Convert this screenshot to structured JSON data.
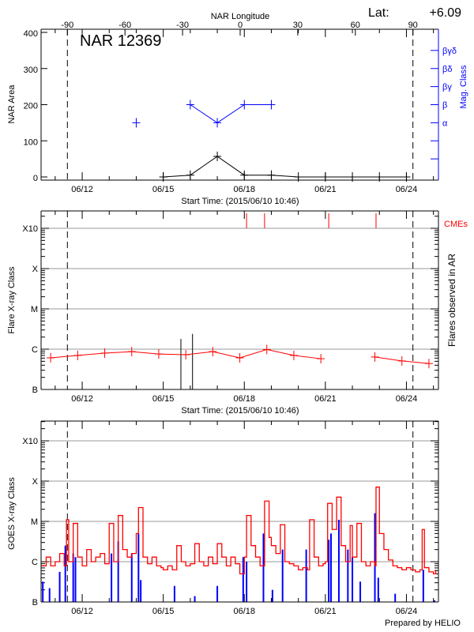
{
  "chart_data": [
    {
      "type": "line",
      "title": "NAR 12369",
      "lat_label": "Lat:",
      "lat_value": "+6.09",
      "ylabel": "NAR Area",
      "y2label": "Mag. Class",
      "x2label": "NAR Longitude",
      "xlabel": "Start Time: (2015/06/10 10:46)",
      "ylim": [
        0,
        400
      ],
      "yticks": [
        "0",
        "100",
        "200",
        "300",
        "400"
      ],
      "xticks": [
        "06/12",
        "06/15",
        "06/18",
        "06/21",
        "06/24"
      ],
      "x2ticks": [
        "-90",
        "-60",
        "-30",
        "0",
        "30",
        "60",
        "90"
      ],
      "limb_longitudes": [
        -90,
        90
      ],
      "mag_class_ticks": [
        "α",
        "β",
        "βγ",
        "βδ",
        "βγδ"
      ],
      "colors": {
        "area": "#000000",
        "mag_class": "#0000ff"
      },
      "series": [
        {
          "name": "NAR Area",
          "points": [
            [
              "06/15 00:00",
              0
            ],
            [
              "06/16 00:00",
              5
            ],
            [
              "06/17 00:00",
              57
            ],
            [
              "06/18 00:00",
              5
            ],
            [
              "06/19 00:00",
              5
            ],
            [
              "06/20 00:00",
              0
            ],
            [
              "06/21 00:00",
              0
            ],
            [
              "06/22 00:00",
              0
            ],
            [
              "06/23 00:00",
              0
            ],
            [
              "06/24 00:00",
              0
            ]
          ]
        },
        {
          "name": "Mag. Class",
          "points": [
            [
              "06/14 00:00",
              "α"
            ],
            [
              "06/16 00:00",
              "β"
            ],
            [
              "06/17 00:00",
              "α"
            ],
            [
              "06/18 00:00",
              "β"
            ],
            [
              "06/19 00:00",
              "β"
            ]
          ]
        }
      ]
    },
    {
      "type": "line",
      "ylabel": "Flare X-ray Class",
      "y2label": "Flares observed in AR",
      "cme_label": "CMEs",
      "xlabel": "Start Time: (2015/06/10 10:46)",
      "yticks": [
        "B",
        "C",
        "M",
        "X",
        "X10"
      ],
      "xticks": [
        "06/12",
        "06/15",
        "06/18",
        "06/21",
        "06/24"
      ],
      "colors": {
        "background": "#ff0000",
        "flares": "#000000",
        "cmes": "#ff0000"
      },
      "background_flux": [
        [
          "06/10 20:00",
          "B6.1"
        ],
        [
          "06/11 20:00",
          "B7.0"
        ],
        [
          "06/12 20:00",
          "B8.0"
        ],
        [
          "06/13 20:00",
          "B8.7"
        ],
        [
          "06/14 20:00",
          "B7.6"
        ],
        [
          "06/15 20:00",
          "B7.3"
        ],
        [
          "06/16 20:00",
          "B8.7"
        ],
        [
          "06/17 20:00",
          "B6.1"
        ],
        [
          "06/18 20:00",
          "B9.8"
        ],
        [
          "06/19 20:00",
          "B7.0"
        ],
        [
          "06/20 20:00",
          "B5.8"
        ],
        null,
        [
          "06/22 20:00",
          "B6.4"
        ],
        [
          "06/23 20:00",
          "B5.1"
        ],
        [
          "06/24 20:00",
          "B4.4"
        ]
      ],
      "flares": [
        [
          "06/15 15:40",
          "C1.8"
        ],
        [
          "06/16 02:00",
          "C2.4"
        ]
      ],
      "cmes": [
        "06/18 02:00",
        "06/18 18:00",
        "06/21 03:00",
        "06/22 21:00"
      ]
    },
    {
      "type": "line",
      "ylabel": "GOES X-ray Class",
      "yticks": [
        "B",
        "C",
        "M",
        "X",
        "X10"
      ],
      "xticks": [
        "06/12",
        "06/15",
        "06/18",
        "06/21",
        "06/24"
      ],
      "colors": {
        "long": "#ff0000",
        "short": "#0000ff"
      },
      "series": [
        {
          "points": [
            [
              "06/10 12:00",
              "B7.9"
            ],
            [
              "06/10 16:00",
              "C1.3"
            ],
            [
              "06/10 20:00",
              "B7.9"
            ],
            [
              "06/11 00:00",
              "C1.0"
            ],
            [
              "06/11 04:00",
              "C1.6"
            ],
            [
              "06/11 08:00",
              "B7.9"
            ],
            [
              "06/11 10:00",
              "M1.1"
            ],
            [
              "06/11 12:00",
              "C1.0"
            ],
            [
              "06/11 16:00",
              "C8.9"
            ],
            [
              "06/11 20:00",
              "C1.3"
            ],
            [
              "06/12 00:00",
              "B7.9"
            ],
            [
              "06/12 04:00",
              "C2.0"
            ],
            [
              "06/12 08:00",
              "C1.0"
            ],
            [
              "06/12 12:00",
              "C1.3"
            ],
            [
              "06/12 16:00",
              "C1.6"
            ],
            [
              "06/12 20:00",
              "B8.9"
            ],
            [
              "06/13 00:00",
              "C8.9"
            ],
            [
              "06/13 04:00",
              "C1.0"
            ],
            [
              "06/13 08:00",
              "M1.4"
            ],
            [
              "06/13 12:00",
              "C2.0"
            ],
            [
              "06/13 16:00",
              "C1.3"
            ],
            [
              "06/13 20:00",
              "C1.6"
            ],
            [
              "06/14 00:00",
              "C5.0"
            ],
            [
              "06/14 02:00",
              "M2.2"
            ],
            [
              "06/14 06:00",
              "C1.3"
            ],
            [
              "06/14 10:00",
              "B8.9"
            ],
            [
              "06/14 14:00",
              "C1.3"
            ],
            [
              "06/14 18:00",
              "B7.9"
            ],
            [
              "06/14 22:00",
              "B7.1"
            ],
            [
              "06/15 00:00",
              "B6.3"
            ],
            [
              "06/15 04:00",
              "B7.9"
            ],
            [
              "06/15 08:00",
              "B6.3"
            ],
            [
              "06/15 12:00",
              "C2.5"
            ],
            [
              "06/15 16:00",
              "C1.0"
            ],
            [
              "06/15 20:00",
              "B7.9"
            ],
            [
              "06/16 00:00",
              "B8.9"
            ],
            [
              "06/16 04:00",
              "C2.8"
            ],
            [
              "06/16 08:00",
              "C1.0"
            ],
            [
              "06/16 12:00",
              "B7.9"
            ],
            [
              "06/16 16:00",
              "C1.3"
            ],
            [
              "06/16 20:00",
              "B8.9"
            ],
            [
              "06/17 00:00",
              "C2.8"
            ],
            [
              "06/17 04:00",
              "C1.3"
            ],
            [
              "06/17 08:00",
              "B7.9"
            ],
            [
              "06/17 12:00",
              "C1.3"
            ],
            [
              "06/17 16:00",
              "B8.9"
            ],
            [
              "06/17 20:00",
              "B5.0"
            ],
            [
              "06/18 00:00",
              "C1.3"
            ],
            [
              "06/18 02:00",
              "M1.4"
            ],
            [
              "06/18 06:00",
              "C2.5"
            ],
            [
              "06/18 10:00",
              "C1.3"
            ],
            [
              "06/18 14:00",
              "B7.9"
            ],
            [
              "06/18 18:00",
              "M3.2"
            ],
            [
              "06/18 22:00",
              "C4.0"
            ],
            [
              "06/19 00:00",
              "C2.5"
            ],
            [
              "06/19 04:00",
              "C1.6"
            ],
            [
              "06/19 08:00",
              "C8.3"
            ],
            [
              "06/19 12:00",
              "C1.0"
            ],
            [
              "06/19 16:00",
              "B8.9"
            ],
            [
              "06/19 20:00",
              "B7.9"
            ],
            [
              "06/20 00:00",
              "B6.3"
            ],
            [
              "06/20 04:00",
              "B7.1"
            ],
            [
              "06/20 08:00",
              "B6.3"
            ],
            [
              "06/20 10:00",
              "M1.1"
            ],
            [
              "06/20 14:00",
              "C1.3"
            ],
            [
              "06/20 18:00",
              "B7.9"
            ],
            [
              "06/20 22:00",
              "B8.9"
            ],
            [
              "06/21 00:00",
              "C1.0"
            ],
            [
              "06/21 02:00",
              "M2.8"
            ],
            [
              "06/21 06:00",
              "C6.3"
            ],
            [
              "06/21 10:00",
              "M4.0"
            ],
            [
              "06/21 14:00",
              "C2.5"
            ],
            [
              "06/21 18:00",
              "C1.0"
            ],
            [
              "06/21 22:00",
              "C7.9"
            ],
            [
              "06/22 00:00",
              "C1.3"
            ],
            [
              "06/22 04:00",
              "C8.9"
            ],
            [
              "06/22 08:00",
              "C1.0"
            ],
            [
              "06/22 12:00",
              "B7.9"
            ],
            [
              "06/22 16:00",
              "C1.0"
            ],
            [
              "06/22 20:00",
              "B7.9"
            ],
            [
              "06/22 21:00",
              "M7.1"
            ],
            [
              "06/23 00:00",
              "C5.0"
            ],
            [
              "06/23 04:00",
              "C2.0"
            ],
            [
              "06/23 08:00",
              "C1.1"
            ],
            [
              "06/23 12:00",
              "B7.9"
            ],
            [
              "06/23 16:00",
              "B7.1"
            ],
            [
              "06/23 20:00",
              "B6.3"
            ],
            [
              "06/24 00:00",
              "B7.1"
            ],
            [
              "06/24 04:00",
              "B6.3"
            ],
            [
              "06/24 08:00",
              "B5.6"
            ],
            [
              "06/24 12:00",
              "B6.3"
            ],
            [
              "06/24 14:00",
              "C6.3"
            ],
            [
              "06/24 16:00",
              "B7.1"
            ],
            [
              "06/24 20:00",
              "B5.6"
            ],
            [
              "06/25 00:00",
              "B5.0"
            ],
            [
              "06/25 02:00",
              "B6.3"
            ]
          ]
        },
        {
          "points": [
            [
              "06/10 13:00",
              "B3.2"
            ],
            [
              "06/10 19:00",
              "B2.2"
            ],
            [
              "06/11 04:00",
              "B5.6"
            ],
            [
              "06/11 09:00",
              "C2.5"
            ],
            [
              "06/11 16:00",
              "C1.6"
            ],
            [
              "06/11 18:00",
              "C1.3"
            ],
            [
              "06/13 02:00",
              "C1.6"
            ],
            [
              "06/13 08:00",
              "C3.2"
            ],
            [
              "06/13 20:00",
              "C1.6"
            ],
            [
              "06/14 02:00",
              "C5.0"
            ],
            [
              "06/14 04:00",
              "B3.5"
            ],
            [
              "06/15 10:00",
              "B2.5"
            ],
            [
              "06/16 04:00",
              "B1.4"
            ],
            [
              "06/17 00:00",
              "B2.5"
            ],
            [
              "06/17 23:00",
              "C1.3"
            ],
            [
              "06/18 02:00",
              "C1.0"
            ],
            [
              "06/18 17:00",
              "C5.0"
            ],
            [
              "06/19 01:00",
              "B2.0"
            ],
            [
              "06/19 10:00",
              "C2.0"
            ],
            [
              "06/20 07:00",
              "C2.0"
            ],
            [
              "06/21 03:00",
              "C3.5"
            ],
            [
              "06/21 05:00",
              "C5.0"
            ],
            [
              "06/21 12:00",
              "M1.1"
            ],
            [
              "06/21 20:00",
              "C2.0"
            ],
            [
              "06/22 00:00",
              "C1.3"
            ],
            [
              "06/22 07:00",
              "B3.2"
            ],
            [
              "06/22 20:00",
              "M1.6"
            ],
            [
              "06/22 23:00",
              "B4.0"
            ],
            [
              "06/23 14:00",
              "B1.6"
            ],
            [
              "06/24 15:00",
              "B6.3"
            ],
            [
              "06/25 01:00",
              "B1.1"
            ]
          ]
        }
      ]
    }
  ],
  "footer": "Prepared by HELIO"
}
